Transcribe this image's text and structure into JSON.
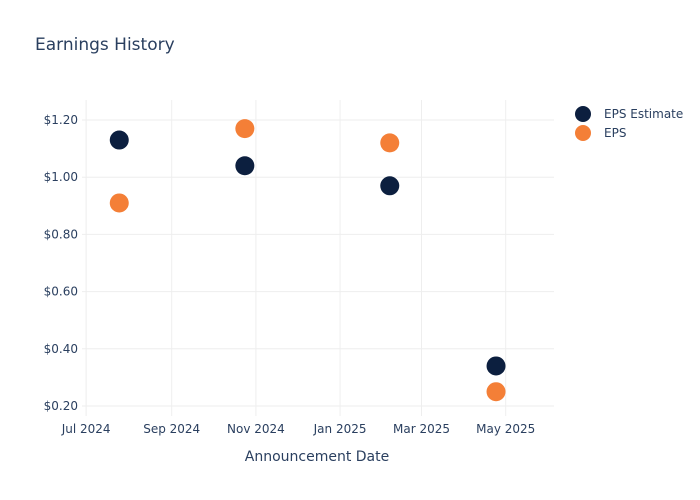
{
  "chart_data": {
    "type": "scatter",
    "title": "Earnings History",
    "xlabel": "Announcement Date",
    "ylabel": "",
    "x_axis_type": "date",
    "xlim": [
      "2024-06-28",
      "2025-06-05"
    ],
    "ylim": [
      0.165,
      1.27
    ],
    "x_ticks": [
      {
        "date": "2024-07-01",
        "label": "Jul 2024"
      },
      {
        "date": "2024-09-01",
        "label": "Sep 2024"
      },
      {
        "date": "2024-11-01",
        "label": "Nov 2024"
      },
      {
        "date": "2025-01-01",
        "label": "Jan 2025"
      },
      {
        "date": "2025-03-01",
        "label": "Mar 2025"
      },
      {
        "date": "2025-05-01",
        "label": "May 2025"
      }
    ],
    "y_ticks": [
      {
        "value": 0.2,
        "label": "$0.20"
      },
      {
        "value": 0.4,
        "label": "$0.40"
      },
      {
        "value": 0.6,
        "label": "$0.60"
      },
      {
        "value": 0.8,
        "label": "$0.80"
      },
      {
        "value": 1.0,
        "label": "$1.00"
      },
      {
        "value": 1.2,
        "label": "$1.20"
      }
    ],
    "grid": true,
    "legend_position": "top-right",
    "series": [
      {
        "name": "EPS Estimate",
        "color": "#0c1f3f",
        "points": [
          {
            "x": "2024-07-25",
            "y": 1.13
          },
          {
            "x": "2024-10-24",
            "y": 1.04
          },
          {
            "x": "2025-02-06",
            "y": 0.97
          },
          {
            "x": "2025-04-24",
            "y": 0.34
          }
        ]
      },
      {
        "name": "EPS",
        "color": "#f47f37",
        "points": [
          {
            "x": "2024-07-25",
            "y": 0.91
          },
          {
            "x": "2024-10-24",
            "y": 1.17
          },
          {
            "x": "2025-02-06",
            "y": 1.12
          },
          {
            "x": "2025-04-24",
            "y": 0.25
          }
        ]
      }
    ]
  }
}
